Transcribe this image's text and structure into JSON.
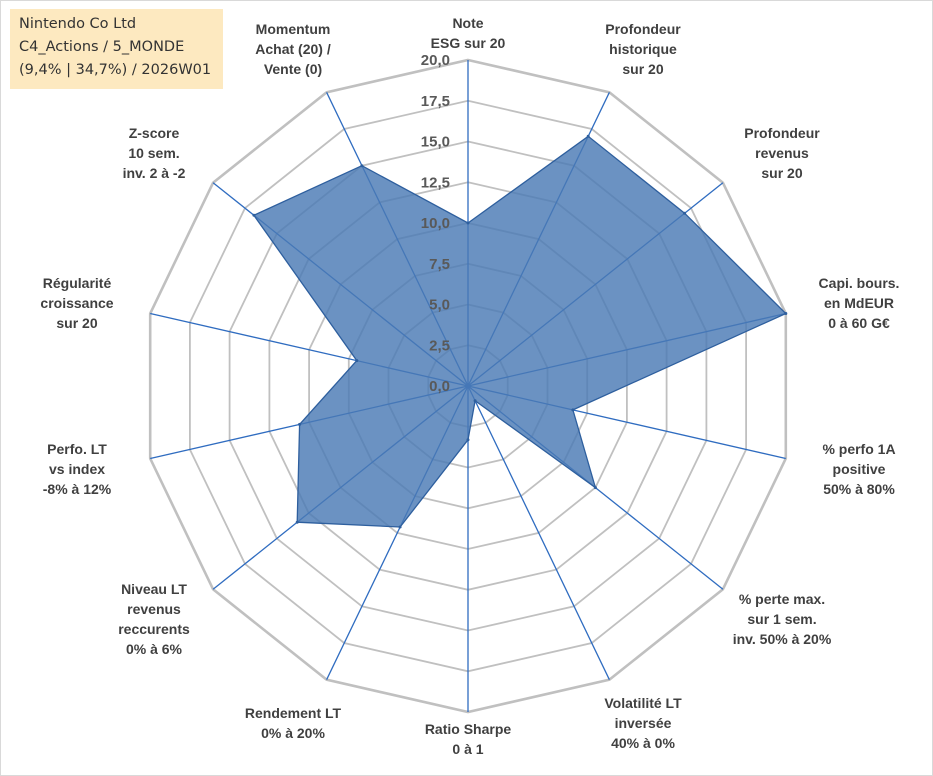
{
  "info_box": {
    "line1": "Nintendo Co Ltd",
    "line2": "C4_Actions / 5_MONDE",
    "line3": "(9,4% | 34,7%) / 2026W01"
  },
  "colors": {
    "fill": "#4a7ab5",
    "stroke": "#2e5f9e",
    "spoke": "#2f6cc0",
    "ring": "#c0c0c0",
    "info_bg": "#fde9c0"
  },
  "chart_data": {
    "type": "radar",
    "range": [
      0,
      20
    ],
    "grid": true,
    "tick_labels": [
      "0,0",
      "2,5",
      "5,0",
      "7,5",
      "10,0",
      "12,5",
      "15,0",
      "17,5",
      "20,0"
    ],
    "axes": [
      [
        "Note",
        "ESG sur 20"
      ],
      [
        "Profondeur",
        "historique",
        "sur 20"
      ],
      [
        "Profondeur",
        "revenus",
        "sur 20"
      ],
      [
        "Capi. bours.",
        "en MdEUR",
        "0 à 60 G€"
      ],
      [
        "% perfo 1A",
        "positive",
        "50% à 80%"
      ],
      [
        "% perte max.",
        "sur 1 sem.",
        "inv. 50% à 20%"
      ],
      [
        "Volatilité LT",
        "inversée",
        "40% à 0%"
      ],
      [
        "Ratio Sharpe",
        "0 à 1"
      ],
      [
        "Rendement LT",
        "0% à 20%"
      ],
      [
        "Niveau LT",
        "revenus",
        "reccurents",
        "0% à 6%"
      ],
      [
        "Perfo. LT",
        "vs index",
        "-8% à 12%"
      ],
      [
        "Régularité",
        "croissance",
        "sur 20"
      ],
      [
        "Z-score",
        "10 sem.",
        "inv. 2 à -2"
      ],
      [
        "Momentum",
        "Achat (20) /",
        "Vente (0)"
      ]
    ],
    "values": [
      10.0,
      17.0,
      17.0,
      20.0,
      6.6,
      10.0,
      1.0,
      3.3,
      9.6,
      13.4,
      10.6,
      7.0,
      16.8,
      15.0
    ]
  }
}
